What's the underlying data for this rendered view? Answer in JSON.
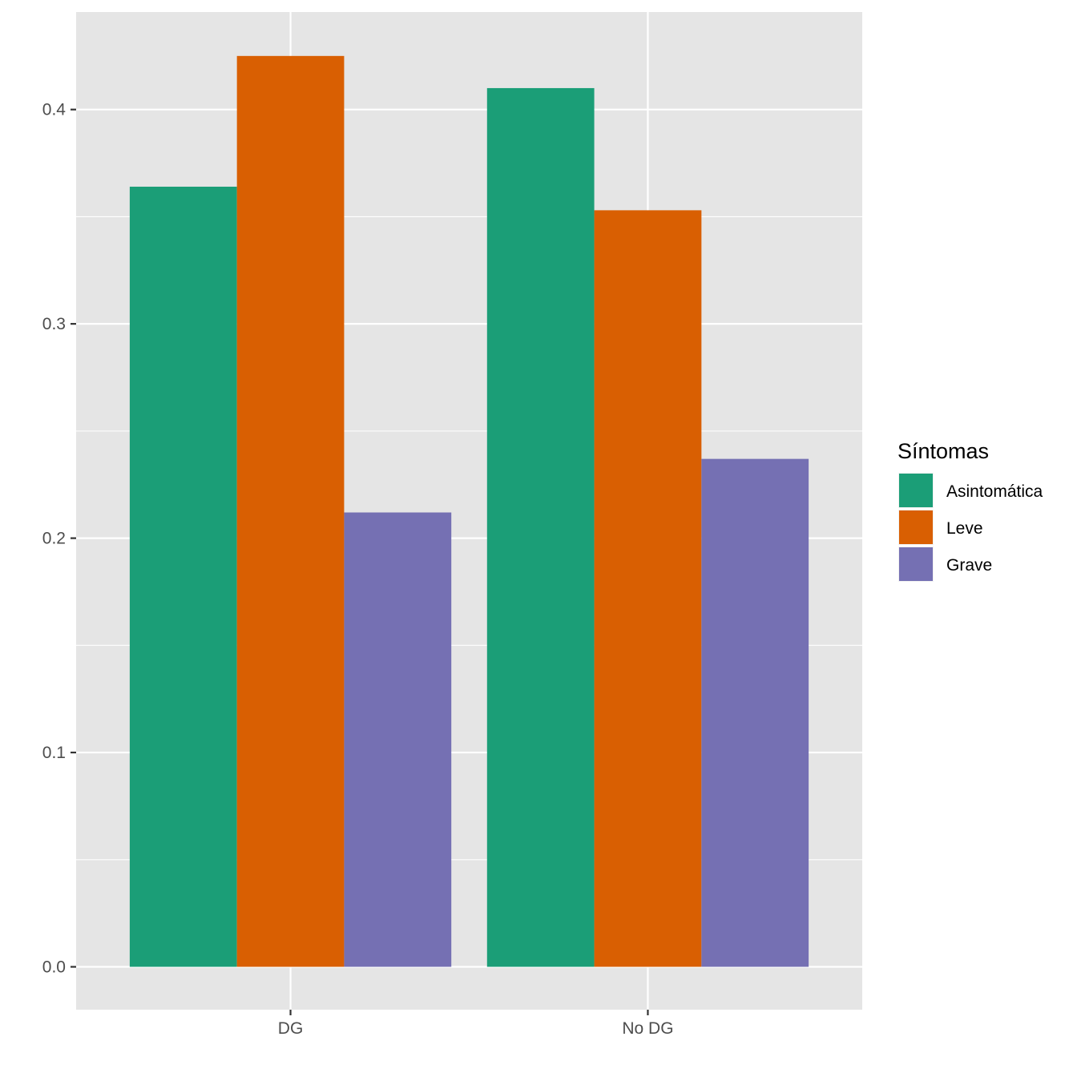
{
  "chart_data": {
    "type": "bar",
    "categories": [
      "DG",
      "No DG"
    ],
    "series": [
      {
        "name": "Asintomática",
        "values": [
          0.364,
          0.41
        ],
        "color": "#1B9E77"
      },
      {
        "name": "Leve",
        "values": [
          0.425,
          0.353
        ],
        "color": "#D95F02"
      },
      {
        "name": "Grave",
        "values": [
          0.212,
          0.237
        ],
        "color": "#7570B3"
      }
    ],
    "title": "",
    "xlabel": "",
    "ylabel": "",
    "ylim": [
      -0.02,
      0.4455
    ],
    "yticks": [
      0.0,
      0.1,
      0.2,
      0.3,
      0.4
    ],
    "ytick_labels": [
      "0.0",
      "0.1",
      "0.2",
      "0.3",
      "0.4"
    ],
    "grid": true,
    "legend": {
      "title": "Síntomas",
      "position": "right"
    }
  },
  "colors": {
    "panel_background": "#E5E5E5",
    "grid": "#FFFFFF",
    "tick": "#333333",
    "tick_label": "#4D4D4D"
  }
}
